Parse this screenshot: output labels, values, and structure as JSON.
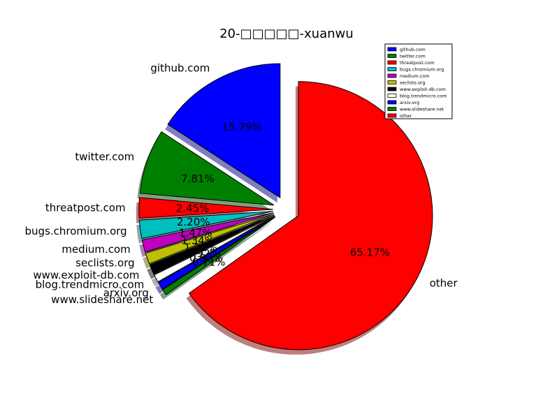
{
  "chart_data": {
    "type": "pie",
    "title": "20-□□□□□-xuanwu",
    "legend_position": "top-right",
    "start_angle_deg": 90,
    "direction": "counterclockwise",
    "exploded_fraction": 0.1,
    "shadow": true,
    "slices": [
      {
        "label": "github.com",
        "value": 15.79,
        "pct_label": "15.79%",
        "color": "#0000ff"
      },
      {
        "label": "twitter.com",
        "value": 7.81,
        "pct_label": "7.81%",
        "color": "#008000"
      },
      {
        "label": "threatpost.com",
        "value": 2.45,
        "pct_label": "2.45%",
        "color": "#ff0000"
      },
      {
        "label": "bugs.chromium.org",
        "value": 2.2,
        "pct_label": "2.20%",
        "color": "#00bfbf"
      },
      {
        "label": "medium.com",
        "value": 1.47,
        "pct_label": "1.47%",
        "color": "#bf00bf"
      },
      {
        "label": "seclists.org",
        "value": 1.34,
        "pct_label": "1.34%",
        "color": "#bfbf00"
      },
      {
        "label": "www.exploit-db.com",
        "value": 1.22,
        "pct_label": "1.22%",
        "color": "#000000"
      },
      {
        "label": "blog.trendmicro.com",
        "value": 0.92,
        "pct_label": "0.92%",
        "color": "#ffffff"
      },
      {
        "label": "arxiv.org",
        "value": 0.92,
        "pct_label": "0.92%",
        "color": "#0000ff"
      },
      {
        "label": "www.slideshare.net",
        "value": 0.71,
        "pct_label": "0.71%",
        "color": "#008000"
      },
      {
        "label": "other",
        "value": 65.17,
        "pct_label": "65.17%",
        "color": "#ff0000"
      }
    ]
  }
}
